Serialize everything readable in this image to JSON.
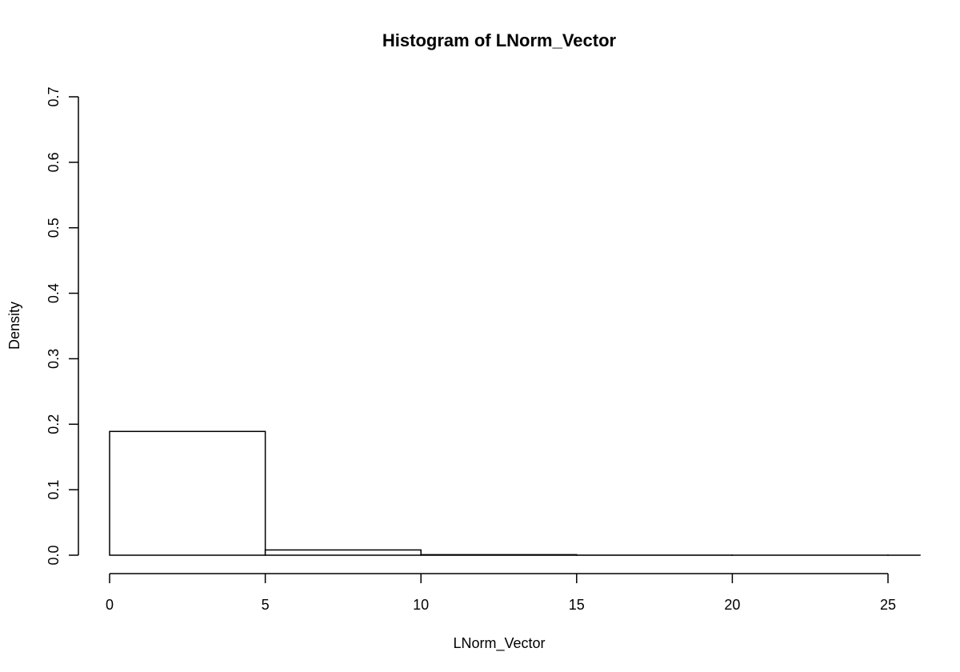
{
  "chart_data": {
    "type": "bar",
    "title": "Histogram of LNorm_Vector",
    "xlabel": "LNorm_Vector",
    "ylabel": "Density",
    "xlim": [
      0,
      25
    ],
    "ylim": [
      0,
      0.7
    ],
    "x_ticks": [
      0,
      5,
      10,
      15,
      20,
      25
    ],
    "x_tick_labels": [
      "0",
      "5",
      "10",
      "15",
      "20",
      "25"
    ],
    "y_ticks": [
      0.0,
      0.1,
      0.2,
      0.3,
      0.4,
      0.5,
      0.6,
      0.7
    ],
    "y_tick_labels": [
      "0.0",
      "0.1",
      "0.2",
      "0.3",
      "0.4",
      "0.5",
      "0.6",
      "0.7"
    ],
    "bins": [
      {
        "start": 0,
        "end": 5,
        "density": 0.189
      },
      {
        "start": 5,
        "end": 10,
        "density": 0.008
      },
      {
        "start": 10,
        "end": 15,
        "density": 0.0008
      },
      {
        "start": 15,
        "end": 20,
        "density": 0.0001
      },
      {
        "start": 20,
        "end": 25,
        "density": 3e-05
      },
      {
        "start": 25,
        "end": 30,
        "density": 1e-05
      }
    ],
    "grid": false,
    "legend": "none"
  }
}
